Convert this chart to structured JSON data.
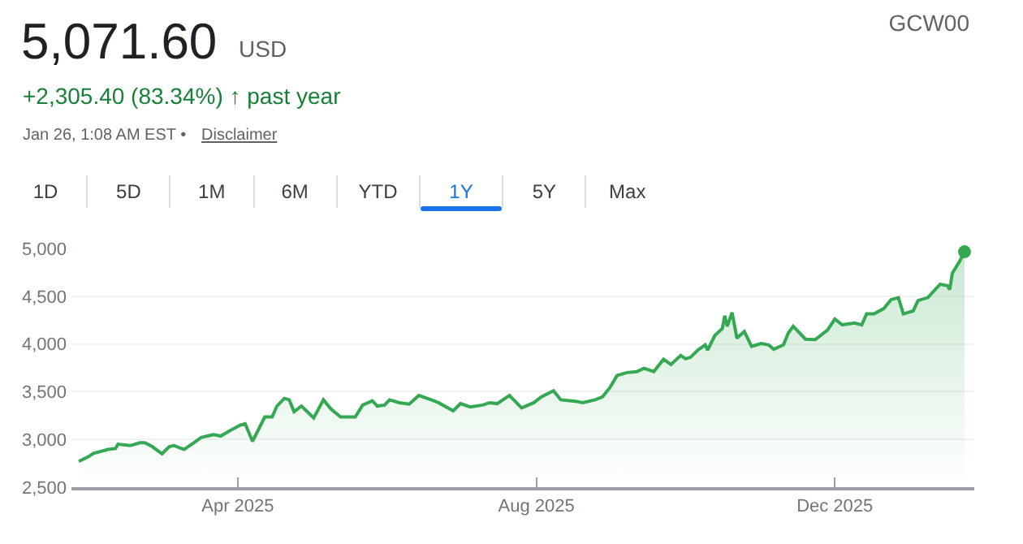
{
  "chart_data": {
    "type": "area",
    "title": "5,071.60",
    "subtitle": "+2,305.40 (83.34%) ↑ past year",
    "annotations": [
      "USD",
      "Jan 26, 1:08 AM EST •",
      "Disclaimer",
      "GCW00",
      "1D",
      "5D",
      "1M",
      "6M",
      "YTD",
      "1Y",
      "5Y",
      "Max"
    ],
    "series": [
      {
        "type": "area",
        "color": "#34a853",
        "x": [
          "2025-01-26",
          "2025-01-30",
          "2025-02-01",
          "2025-02-07",
          "2025-02-10",
          "2025-02-11",
          "2025-02-16",
          "2025-02-20",
          "2025-02-22",
          "2025-02-25",
          "2025-03-01",
          "2025-03-04",
          "2025-03-06",
          "2025-03-10",
          "2025-03-14",
          "2025-03-17",
          "2025-03-22",
          "2025-03-25",
          "2025-03-29",
          "2025-04-02",
          "2025-04-04",
          "2025-04-07",
          "2025-04-12",
          "2025-04-15",
          "2025-04-17",
          "2025-04-20",
          "2025-04-22",
          "2025-04-24",
          "2025-04-27",
          "2025-05-02",
          "2025-05-06",
          "2025-05-09",
          "2025-05-13",
          "2025-05-16",
          "2025-05-19",
          "2025-05-22",
          "2025-05-26",
          "2025-05-28",
          "2025-05-31",
          "2025-06-02",
          "2025-06-06",
          "2025-06-10",
          "2025-06-14",
          "2025-06-19",
          "2025-06-22",
          "2025-06-28",
          "2025-07-01",
          "2025-07-05",
          "2025-07-10",
          "2025-07-13",
          "2025-07-16",
          "2025-07-21",
          "2025-07-26",
          "2025-07-31",
          "2025-08-03",
          "2025-08-08",
          "2025-08-11",
          "2025-08-17",
          "2025-08-20",
          "2025-08-25",
          "2025-08-28",
          "2025-08-31",
          "2025-09-03",
          "2025-09-07",
          "2025-09-11",
          "2025-09-14",
          "2025-09-18",
          "2025-09-22",
          "2025-09-25",
          "2025-09-29",
          "2025-10-01",
          "2025-10-03",
          "2025-10-06",
          "2025-10-09",
          "2025-10-10",
          "2025-10-13",
          "2025-10-16",
          "2025-10-17",
          "2025-10-18",
          "2025-10-20",
          "2025-10-22",
          "2025-10-25",
          "2025-10-28",
          "2025-11-01",
          "2025-11-04",
          "2025-11-06",
          "2025-11-10",
          "2025-11-12",
          "2025-11-14",
          "2025-11-19",
          "2025-11-23",
          "2025-11-28",
          "2025-12-01",
          "2025-12-04",
          "2025-12-09",
          "2025-12-12",
          "2025-12-14",
          "2025-12-17",
          "2025-12-21",
          "2025-12-24",
          "2025-12-27",
          "2025-12-29",
          "2026-01-02",
          "2026-01-04",
          "2026-01-08",
          "2026-01-13",
          "2026-01-16",
          "2026-01-17",
          "2026-01-18",
          "2026-01-21",
          "2026-01-23"
        ],
        "values": [
          2770,
          2820,
          2855,
          2895,
          2905,
          2950,
          2935,
          2965,
          2965,
          2925,
          2850,
          2925,
          2935,
          2895,
          2965,
          3020,
          3050,
          3035,
          3095,
          3150,
          3165,
          2980,
          3235,
          3235,
          3350,
          3430,
          3415,
          3290,
          3350,
          3225,
          3415,
          3320,
          3235,
          3235,
          3235,
          3360,
          3405,
          3350,
          3360,
          3415,
          3385,
          3370,
          3460,
          3415,
          3385,
          3300,
          3375,
          3340,
          3360,
          3385,
          3375,
          3460,
          3330,
          3385,
          3445,
          3510,
          3415,
          3400,
          3385,
          3415,
          3445,
          3540,
          3670,
          3700,
          3710,
          3745,
          3710,
          3840,
          3785,
          3880,
          3845,
          3860,
          3935,
          3990,
          3935,
          4090,
          4160,
          4295,
          4185,
          4330,
          4060,
          4130,
          3975,
          4005,
          3990,
          3945,
          3990,
          4115,
          4185,
          4050,
          4045,
          4145,
          4260,
          4200,
          4220,
          4200,
          4315,
          4315,
          4370,
          4465,
          4485,
          4315,
          4345,
          4455,
          4485,
          4625,
          4610,
          4570,
          4740,
          4865,
          4965
        ]
      },
      {
        "type": "scatter",
        "color": "#34a853",
        "x": [
          "2026-01-23"
        ],
        "values": [
          4965
        ]
      }
    ],
    "xlim": [
      "2025-01-23",
      "2026-01-27"
    ],
    "xticks": [
      {
        "value": "2025-04-01",
        "label": "Apr 2025"
      },
      {
        "value": "2025-08-01",
        "label": "Aug 2025"
      },
      {
        "value": "2025-12-01",
        "label": "Dec 2025"
      }
    ],
    "ylim": [
      2500,
      5000
    ],
    "yticks": [
      {
        "value": 2500,
        "label": "2,500"
      },
      {
        "value": 3000,
        "label": "3,000"
      },
      {
        "value": 3500,
        "label": "3,500"
      },
      {
        "value": 4000,
        "label": "4,000"
      },
      {
        "value": 4500,
        "label": "4,500"
      },
      {
        "value": 5000,
        "label": "5,000"
      }
    ],
    "grid": "y"
  }
}
